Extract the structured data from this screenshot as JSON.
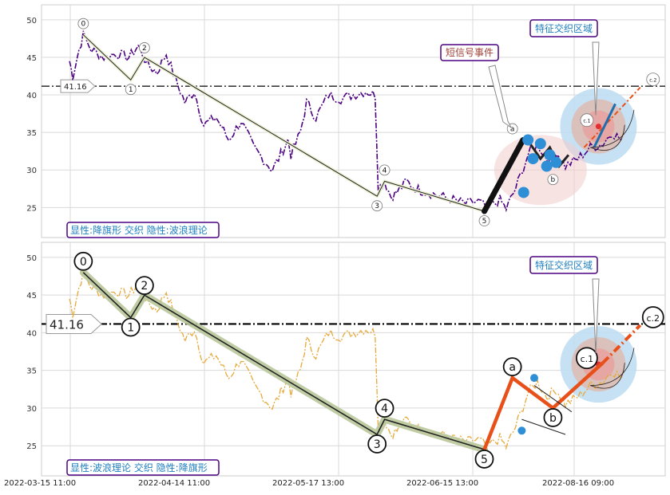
{
  "x_tick_labels": [
    "2022-03-15 11:00",
    "2022-04-14 11:00",
    "2022-05-17 13:00",
    "2022-06-15 13:00",
    "2022-08-16 09:00"
  ],
  "y_tick_labels": [
    "25",
    "30",
    "35",
    "40",
    "45",
    "50"
  ],
  "colors": {
    "top_price": "#4b0082",
    "bottom_price": "#e6a93a",
    "wave": "#222222",
    "wave_highlight": "#b9c79a",
    "signal": "#e8501a",
    "dots": "#2f8fd6",
    "panel_label": "#1f7fc0",
    "panel_label_border": "#4b0082"
  },
  "panels": [
    {
      "id": "top",
      "caption": "显性:降旗形 交织 隐性:波浪理论",
      "level_label": "41.16",
      "signal_label": "短信号事件",
      "zone_label": "特征交织区域",
      "wave_labels": [
        "0",
        "1",
        "2",
        "3",
        "4",
        "5",
        "a",
        "b",
        "c.1",
        "c.2"
      ]
    },
    {
      "id": "bottom",
      "caption": "显性:波浪理论 交织 隐性:降旗形",
      "level_label": "41.16",
      "zone_label": "特征交织区域",
      "wave_labels": [
        "0",
        "1",
        "2",
        "3",
        "4",
        "5",
        "a",
        "b",
        "c.1",
        "c.2"
      ]
    }
  ],
  "chart_data": {
    "type": "line",
    "x": [
      "2022-03-15 11:00",
      "2022-04-14 11:00",
      "2022-05-17 13:00",
      "2022-06-15 13:00",
      "2022-08-16 09:00"
    ],
    "ylim": [
      21,
      52
    ],
    "horizontal_line": 41.16,
    "waves": {
      "labels": [
        "0",
        "1",
        "2",
        "3",
        "4",
        "5",
        "a",
        "b",
        "c.1",
        "c.2"
      ],
      "values": [
        48,
        42,
        45,
        26.5,
        28.5,
        24.5,
        34,
        30,
        36,
        41
      ]
    },
    "grid": true
  }
}
